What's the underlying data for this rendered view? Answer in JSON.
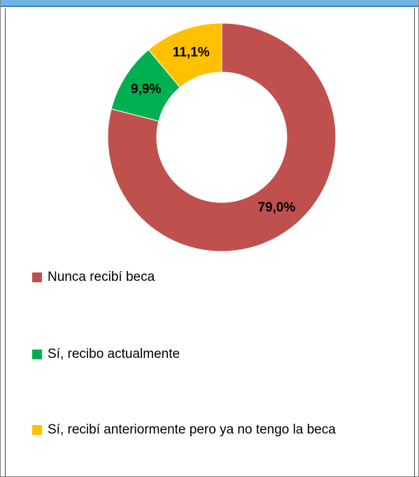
{
  "chart_data": {
    "type": "pie",
    "donut": true,
    "categories": [
      "Nunca recibí beca",
      "Sí, recibo actualmente",
      "Sí, recibí anteriormente pero ya no tengo la beca"
    ],
    "values": [
      79.0,
      9.9,
      11.1
    ],
    "value_labels": [
      "79,0%",
      "9,9%",
      "11,1%"
    ],
    "colors": [
      "#c0504d",
      "#00b050",
      "#ffc000"
    ]
  }
}
